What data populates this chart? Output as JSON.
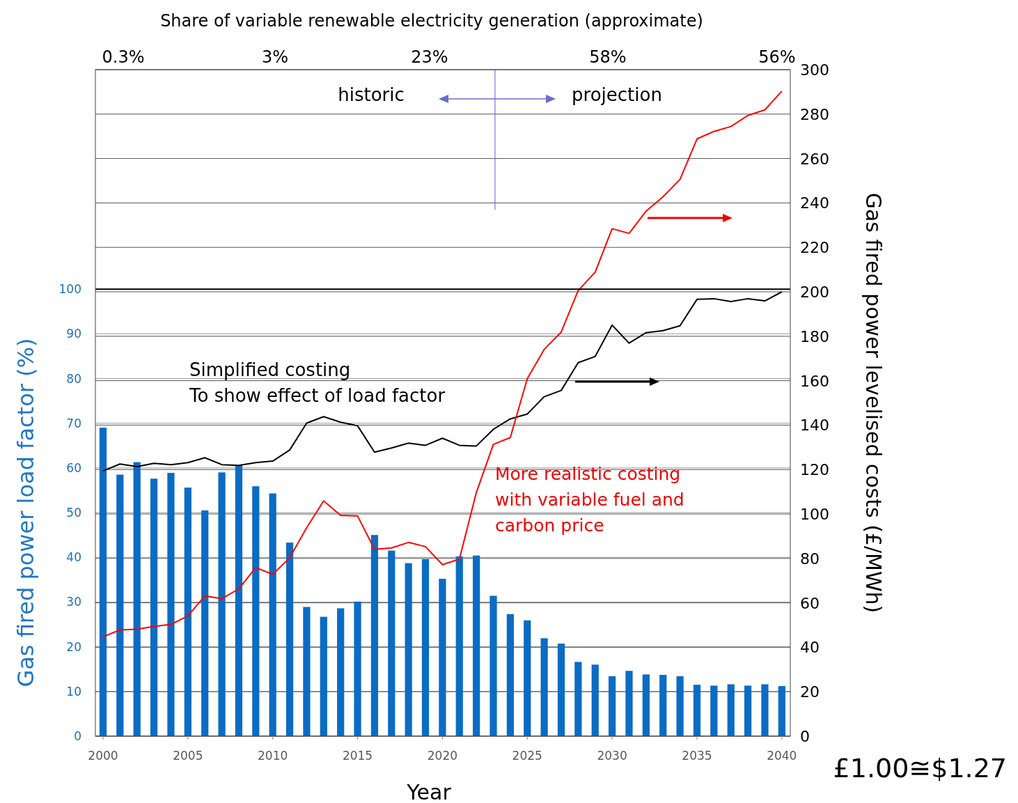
{
  "chart_data": {
    "type": "bar",
    "xlabel": "Year",
    "ylabel": "Gas fired power load factor (%)",
    "y2label": "Gas fired power levelised  costs (£/MWh)",
    "x": [
      2000,
      2001,
      2002,
      2003,
      2004,
      2005,
      2006,
      2007,
      2008,
      2009,
      2010,
      2011,
      2012,
      2013,
      2014,
      2015,
      2016,
      2017,
      2018,
      2019,
      2020,
      2021,
      2022,
      2023,
      2024,
      2025,
      2026,
      2027,
      2028,
      2029,
      2030,
      2031,
      2032,
      2033,
      2034,
      2035,
      2036,
      2037,
      2038,
      2039,
      2040
    ],
    "series": [
      {
        "color": "#0b6cc4",
        "values": [
          69,
          58.5,
          61.3,
          57.6,
          58.9,
          55.6,
          50.5,
          59,
          60.6,
          55.9,
          54.3,
          43.3,
          28.9,
          26.7,
          28.6,
          30.1,
          45,
          41.5,
          38.7,
          39.6,
          35.2,
          40.2,
          40.4,
          31.4,
          27.3,
          25.9,
          21.9,
          20.7,
          16.6,
          16,
          13.4,
          14.6,
          13.8,
          13.7,
          13.4,
          11.5,
          11.3,
          11.6,
          11.3,
          11.6,
          11.2
        ]
      },
      {
        "type": "line",
        "axis": "y2",
        "color": "#000000",
        "values": [
          119.4,
          122.5,
          121.3,
          122.8,
          122.2,
          123.1,
          125.3,
          122.2,
          121.9,
          123.1,
          123.8,
          128.8,
          140.9,
          143.8,
          141.3,
          139.7,
          127.8,
          129.7,
          131.9,
          130.9,
          134.1,
          130.9,
          130.6,
          138.1,
          142.8,
          145,
          152.8,
          155.6,
          168.1,
          170.9,
          185,
          176.9,
          181.6,
          182.5,
          184.7,
          196.6,
          196.9,
          195.6,
          196.9,
          195.9,
          200
        ]
      },
      {
        "type": "line",
        "axis": "y2",
        "color": "#ff0000",
        "values": [
          44.7,
          47.8,
          48.1,
          49.4,
          50.3,
          54.1,
          63.1,
          61.9,
          66.3,
          75.9,
          72.8,
          80.3,
          93.8,
          105.9,
          99.4,
          99.1,
          84.1,
          84.7,
          87.2,
          85.3,
          77.2,
          79.7,
          109.7,
          131.3,
          134.4,
          160.9,
          174.1,
          181.9,
          200.6,
          208.8,
          228.4,
          226.3,
          236.3,
          242.8,
          250.6,
          268.8,
          272.2,
          274.4,
          279.4,
          281.9,
          290.3
        ]
      }
    ],
    "xlim": [
      1999.55,
      2040.5
    ],
    "xticks": [
      2000,
      2005,
      2010,
      2015,
      2020,
      2025,
      2030,
      2035,
      2040
    ],
    "ylim": [
      0,
      149.1
    ],
    "yticks": [
      0,
      10,
      20,
      30,
      40,
      50,
      60,
      70,
      80,
      90,
      100
    ],
    "y2lim": [
      0,
      300
    ],
    "y2ticks": [
      0,
      20,
      40,
      60,
      80,
      100,
      120,
      140,
      160,
      180,
      200,
      220,
      240,
      260,
      280,
      300
    ],
    "grid": true,
    "ref_lines": [
      {
        "axis": "x",
        "value": 2023.1,
        "color": "#5b5bd6"
      },
      {
        "axis": "y",
        "value": 100,
        "color": "#000000"
      }
    ],
    "annotations": [
      "Share of variable renewable electricity generation (approximate)",
      "0.3%",
      "3%",
      "23%",
      "58%",
      "56%",
      "historic",
      "projection",
      "Simplified costing\nTo show effect of load factor",
      "More realistic costing\nwith variable fuel and\ncarbon price",
      "£1.00≅$1.27"
    ]
  }
}
